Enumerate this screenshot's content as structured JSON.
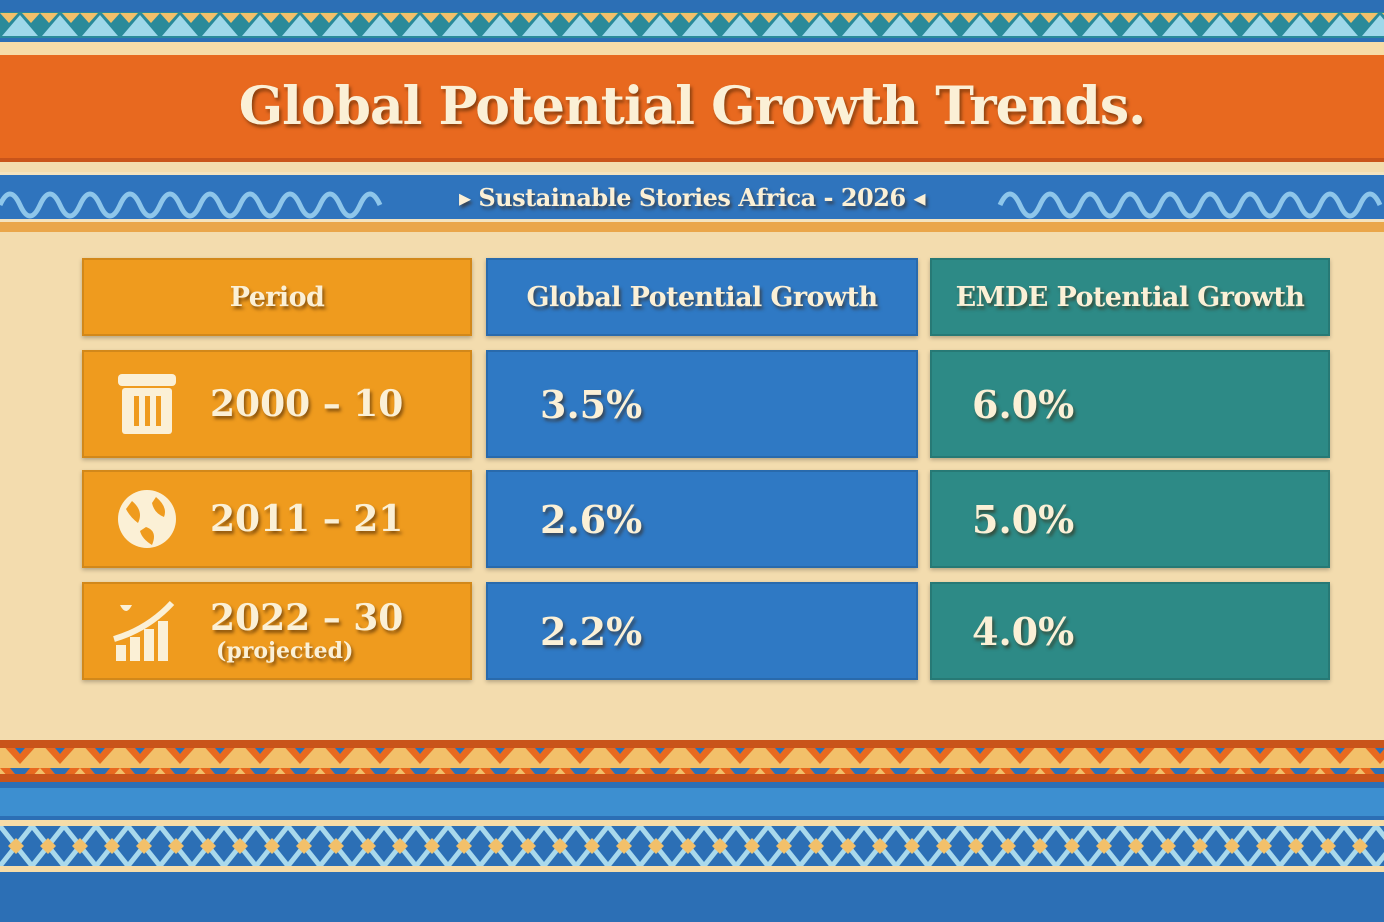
{
  "title": "Global Potential Growth Trends.",
  "subtitle": "Sustainable Stories Africa - 2026",
  "colors": {
    "orange": "#e8691f",
    "blue": "#2f74bd",
    "teal": "#2d8a86",
    "amber": "#ef9b1e",
    "cream": "#f3dcae"
  },
  "chart_data": {
    "type": "table",
    "title": "Global Potential Growth Trends.",
    "columns": [
      "Period",
      "Global Potential Growth",
      "EMDE Potential Growth"
    ],
    "rows": [
      {
        "period": "2000 – 10",
        "note": "",
        "icon": "trash-bin-icon",
        "global": "3.5%",
        "emde": "6.0%"
      },
      {
        "period": "2011 – 21",
        "note": "",
        "icon": "globe-icon",
        "global": "2.6%",
        "emde": "5.0%"
      },
      {
        "period": "2022 – 30",
        "note": "(projected)",
        "icon": "growth-chart-icon",
        "global": "2.2%",
        "emde": "4.0%"
      }
    ],
    "values_global": [
      3.5,
      2.6,
      2.2
    ],
    "values_emde": [
      6.0,
      5.0,
      4.0
    ],
    "unit": "%"
  }
}
